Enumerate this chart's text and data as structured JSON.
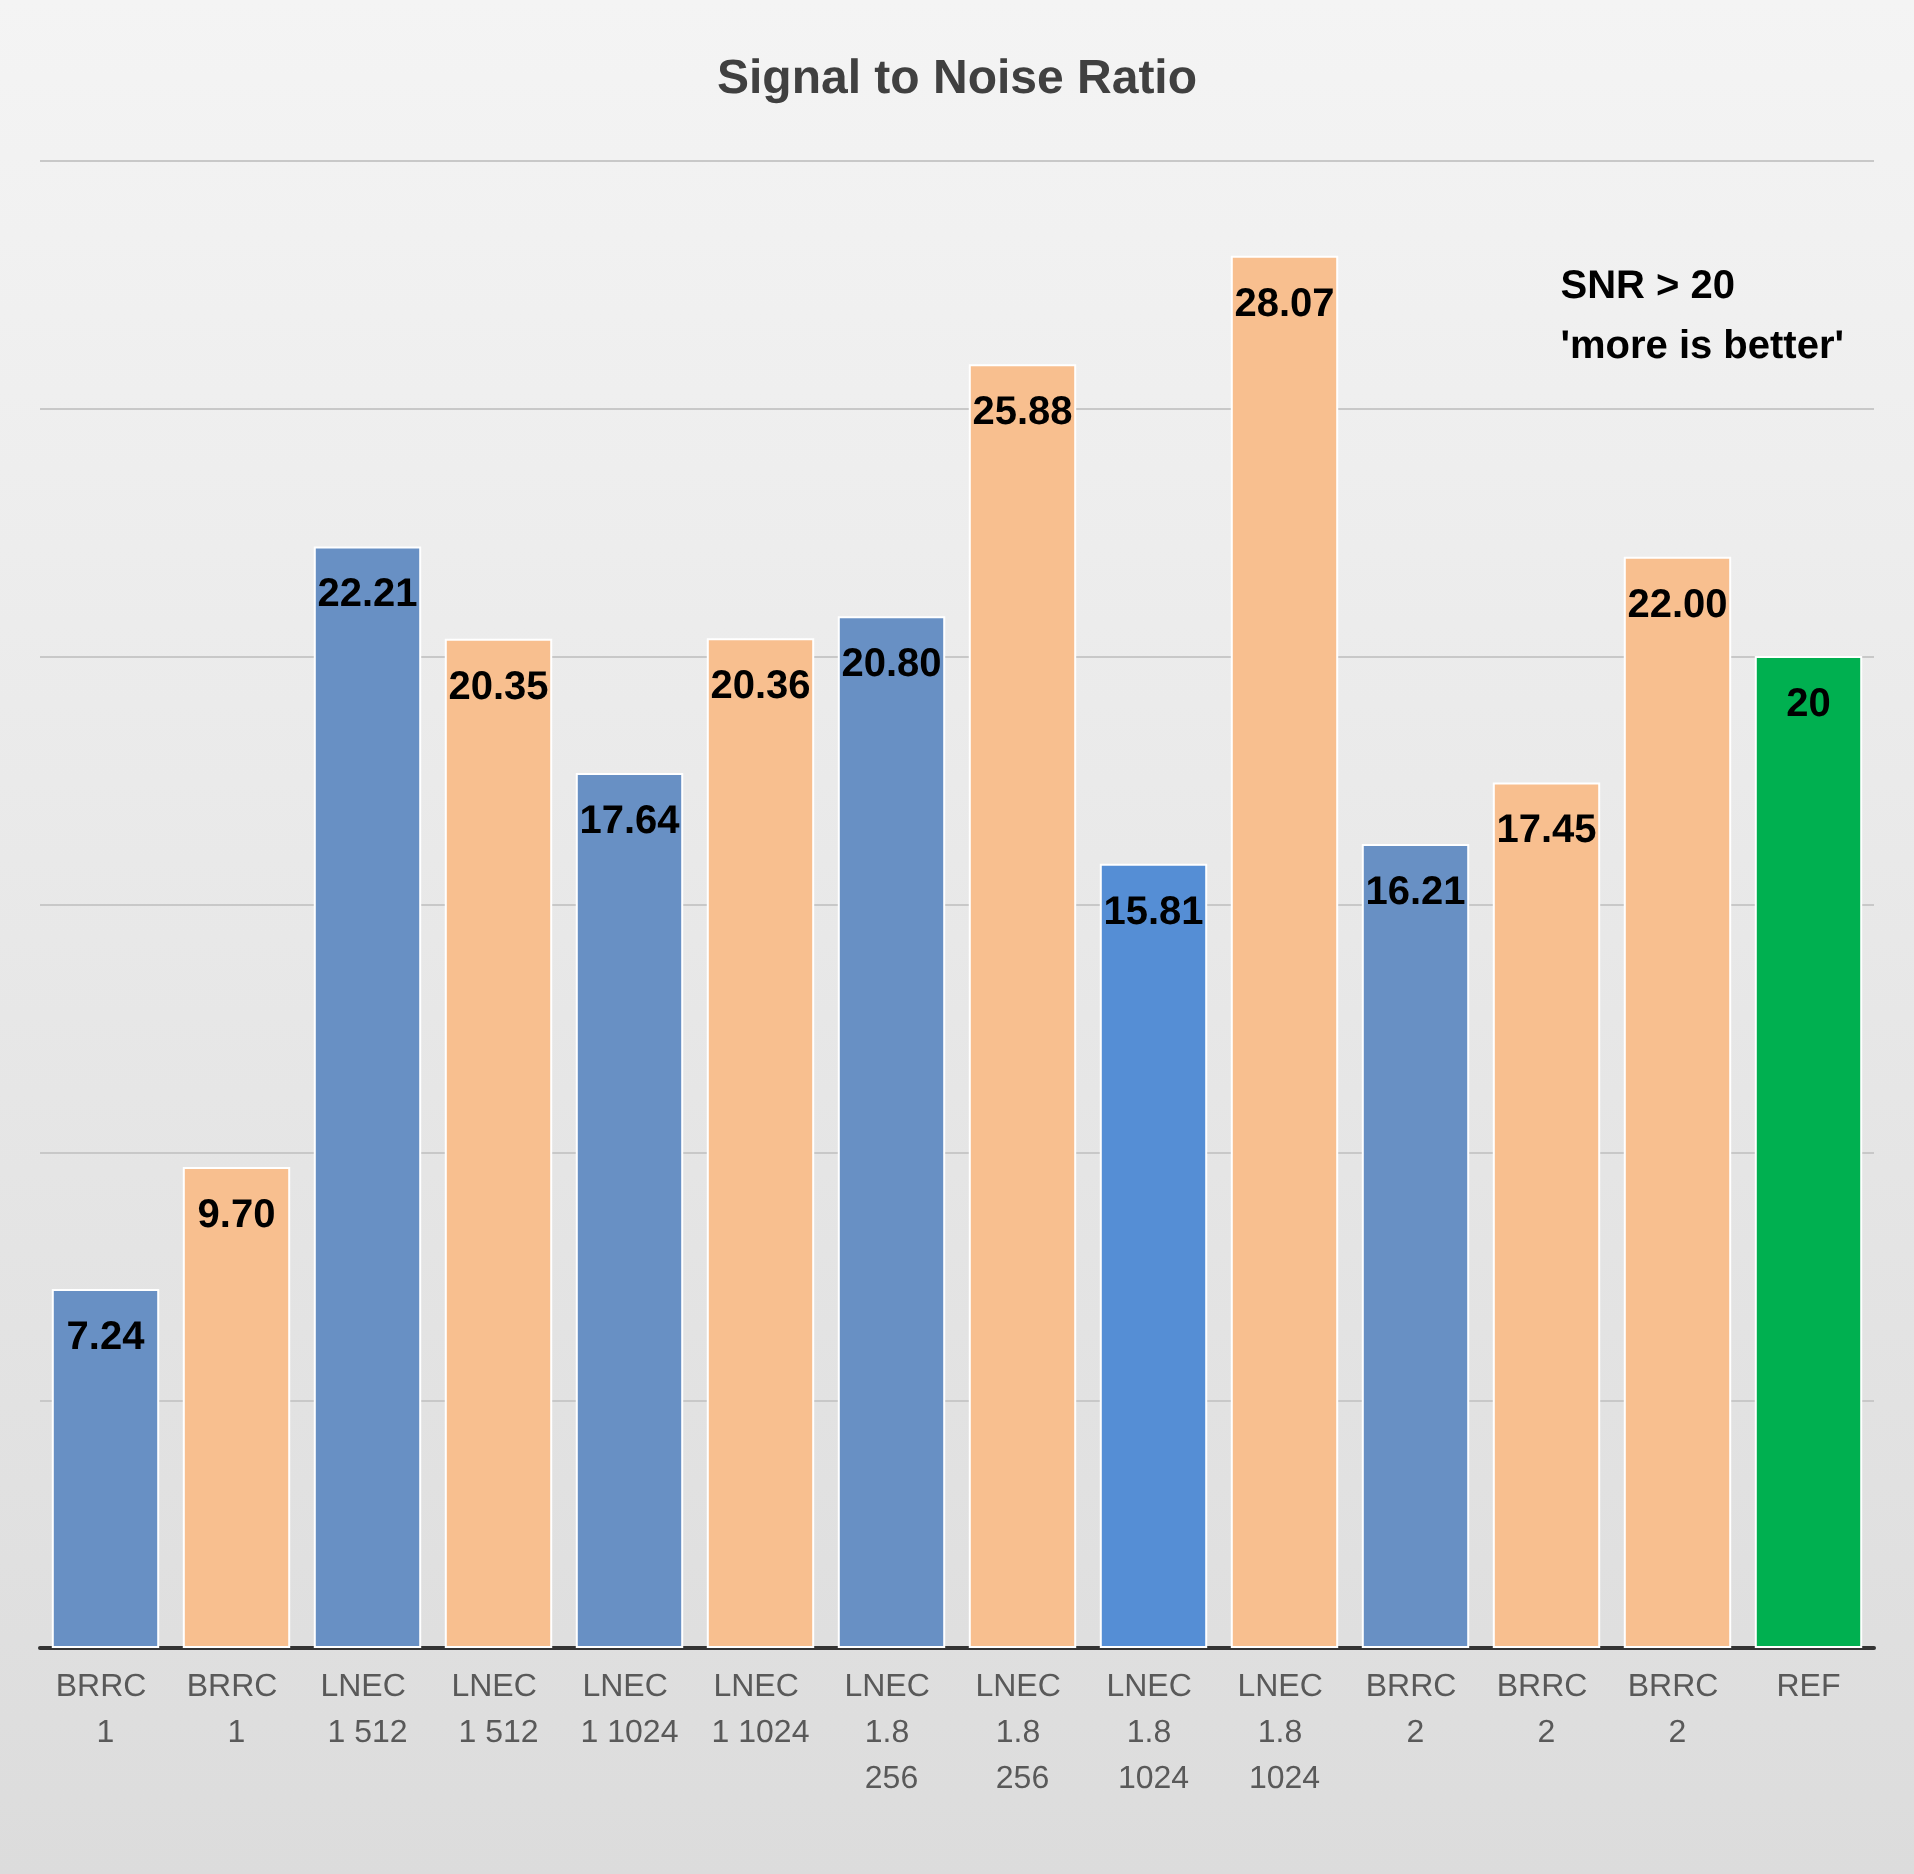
{
  "chart_data": {
    "type": "bar",
    "title": "Signal to Noise Ratio",
    "categories": [
      "BRRC 1",
      "BRRC 1",
      "LNEC 1 512",
      "LNEC 1 512",
      "LNEC 1 1024",
      "LNEC 1 1024",
      "LNEC 1.8 256",
      "LNEC 1.8 256",
      "LNEC 1.8 1024",
      "LNEC 1.8 1024",
      "BRRC 2",
      "BRRC 2",
      "BRRC 2",
      "REF"
    ],
    "values": [
      7.24,
      9.7,
      22.21,
      20.35,
      17.64,
      20.36,
      20.8,
      25.88,
      15.81,
      28.07,
      16.21,
      17.45,
      22.0,
      20
    ],
    "value_labels": [
      "7.24",
      "9.70",
      "22.21",
      "20.35",
      "17.64",
      "20.36",
      "20.80",
      "25.88",
      "15.81",
      "28.07",
      "16.21",
      "17.45",
      "22.00",
      "20"
    ],
    "colors": [
      "#6890c4",
      "#f8bf8f",
      "#6890c4",
      "#f8bf8f",
      "#6890c4",
      "#f8bf8f",
      "#6890c4",
      "#f8bf8f",
      "#558ed5",
      "#f8bf8f",
      "#6890c4",
      "#f8bf8f",
      "#f8bf8f",
      "#00b050"
    ],
    "ylim": [
      0,
      30
    ],
    "yticks": [
      {
        "value": 0,
        "label": null
      },
      {
        "value": 5,
        "label": null
      },
      {
        "value": 10,
        "label": null
      },
      {
        "value": 15,
        "label": null
      },
      {
        "value": 20,
        "label": null
      },
      {
        "value": 25,
        "label": null
      },
      {
        "value": 30,
        "label": null
      }
    ],
    "tick_labels": "x",
    "grid": "y",
    "annotations": [
      "SNR > 20\n'more is better'"
    ]
  }
}
